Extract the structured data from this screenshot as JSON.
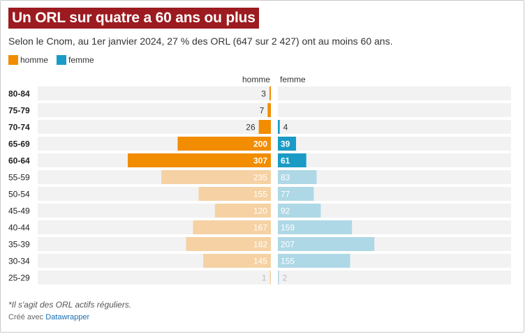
{
  "title": "Un ORL sur quatre a 60 ans ou plus",
  "subtitle": "Selon le Cnom, au 1er janvier 2024, 27 % des ORL (647 sur 2 427) ont au moins 60 ans.",
  "legend": [
    {
      "label": "homme",
      "color": "#f28c00"
    },
    {
      "label": "femme",
      "color": "#1a9bc6"
    }
  ],
  "column_headers": {
    "left": "homme",
    "right": "femme"
  },
  "footnote": "*Il s'agit des ORL actifs réguliers.",
  "credit": {
    "prefix": "Créé avec",
    "link": "Datawrapper"
  },
  "colors": {
    "homme": "#f28c00",
    "femme": "#1a9bc6",
    "homme_light": "#f5d1a3",
    "femme_light": "#aed8e6",
    "track": "#f2f2f2"
  },
  "chart_data": {
    "type": "bar",
    "orientation": "horizontal",
    "layout": "population-pyramid",
    "categories": [
      "80-84",
      "75-79",
      "70-74",
      "65-69",
      "60-64",
      "55-59",
      "50-54",
      "45-49",
      "40-44",
      "35-39",
      "30-34",
      "25-29"
    ],
    "highlighted_categories": [
      "80-84",
      "75-79",
      "70-74",
      "65-69",
      "60-64"
    ],
    "series": [
      {
        "name": "homme",
        "values": [
          3,
          7,
          26,
          200,
          307,
          235,
          155,
          120,
          167,
          182,
          145,
          1
        ]
      },
      {
        "name": "femme",
        "values": [
          null,
          null,
          4,
          39,
          61,
          83,
          77,
          92,
          159,
          207,
          155,
          2
        ]
      }
    ],
    "xlim": [
      0,
      350
    ]
  }
}
